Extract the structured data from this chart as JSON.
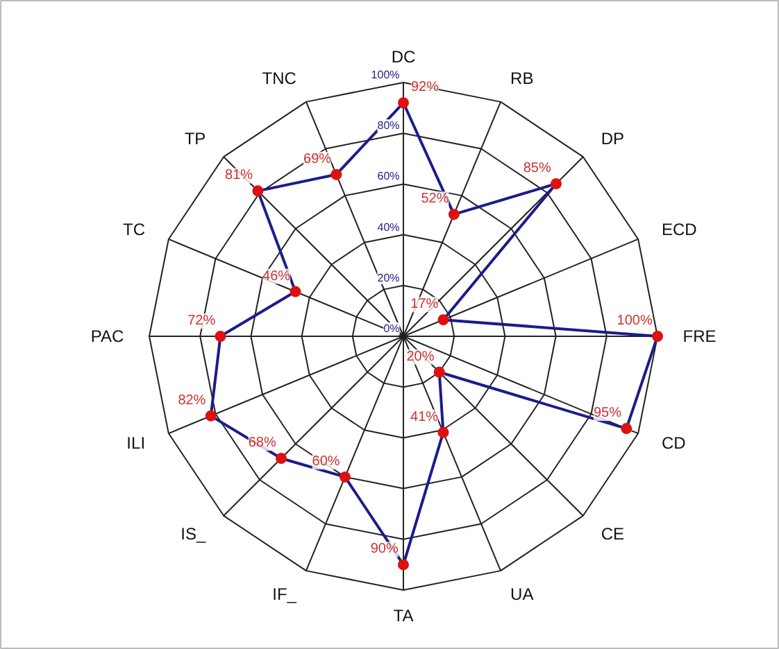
{
  "chart_data": {
    "type": "radar",
    "categories": [
      "DC",
      "RB",
      "DP",
      "ECD",
      "FRE",
      "CD",
      "CE",
      "UA",
      "TA",
      "IF_",
      "IS_",
      "ILI",
      "PAC",
      "TC",
      "TP",
      "TNC"
    ],
    "series": [
      {
        "color": "#1c1c8a",
        "values": [
          92,
          52,
          85,
          17,
          100,
          95,
          20,
          41,
          90,
          60,
          68,
          82,
          72,
          46,
          81,
          69
        ],
        "value_labels": [
          "92%",
          "52%",
          "85%",
          "17%",
          "100%",
          "95%",
          "20%",
          "41%",
          "90%",
          "60%",
          "68%",
          "82%",
          "72%",
          "46%",
          "81%",
          "69%"
        ]
      }
    ],
    "ylim": [
      0,
      100
    ],
    "yticks": [
      {
        "value": 0,
        "label": "0%"
      },
      {
        "value": 20,
        "label": "20%"
      },
      {
        "value": 40,
        "label": "40%"
      },
      {
        "value": 60,
        "label": "60%"
      },
      {
        "value": 80,
        "label": "80%"
      },
      {
        "value": 100,
        "label": "100%"
      }
    ],
    "marker": "circle",
    "grid": true
  }
}
